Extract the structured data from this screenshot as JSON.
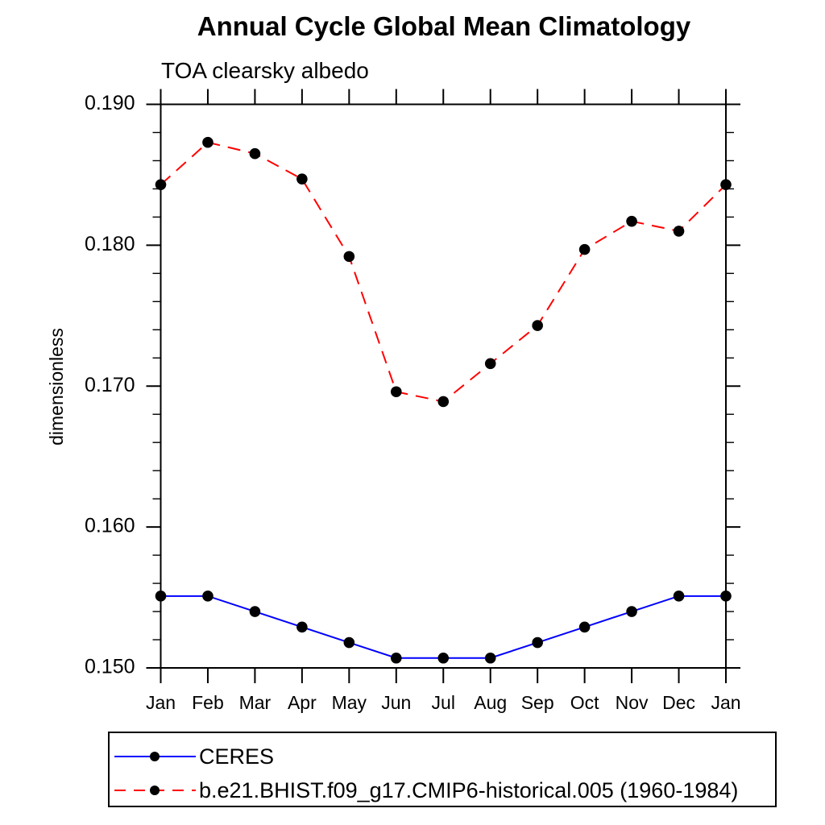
{
  "page": {
    "background": "#ffffff",
    "text_color": "#000000"
  },
  "chart_data": {
    "type": "line",
    "title": "Annual Cycle Global Mean Climatology",
    "subtitle": "TOA clearsky albedo",
    "xlabel": "",
    "ylabel": "dimensionless",
    "ylim": [
      0.15,
      0.19
    ],
    "ytick_major_step": 0.01,
    "ytick_minor_step": 0.002,
    "ytick_labels": [
      "0.150",
      "0.160",
      "0.170",
      "0.180",
      "0.190"
    ],
    "x_categories": [
      "Jan",
      "Feb",
      "Mar",
      "Apr",
      "May",
      "Jun",
      "Jul",
      "Aug",
      "Sep",
      "Oct",
      "Nov",
      "Dec",
      "Jan"
    ],
    "grid": false,
    "axis_color": "#000000",
    "marker_color": "#000000",
    "legend_position": "bottom-left",
    "series": [
      {
        "name": "CERES",
        "color": "#0000ff",
        "line_style": "solid",
        "marker": "filled-circle",
        "values": [
          0.1551,
          0.1551,
          0.154,
          0.1529,
          0.1518,
          0.1507,
          0.1507,
          0.1507,
          0.1518,
          0.1529,
          0.154,
          0.1551,
          0.1551
        ]
      },
      {
        "name": "b.e21.BHIST.f09_g17.CMIP6-historical.005 (1960-1984)",
        "color": "#ff0000",
        "line_style": "dashed",
        "marker": "filled-circle",
        "values": [
          0.1843,
          0.1873,
          0.1865,
          0.1847,
          0.1792,
          0.1696,
          0.1689,
          0.1716,
          0.1743,
          0.1797,
          0.1817,
          0.181,
          0.1843
        ]
      }
    ]
  }
}
